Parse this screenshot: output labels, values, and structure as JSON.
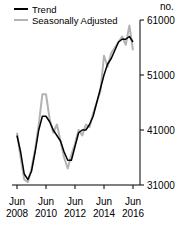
{
  "chart_data": {
    "type": "line",
    "y_label": "no.",
    "categories": [
      "Jun 2008",
      null,
      null,
      null,
      null,
      null,
      null,
      null,
      "Jun 2010",
      null,
      null,
      null,
      null,
      null,
      null,
      null,
      "Jun 2012",
      null,
      null,
      null,
      null,
      null,
      null,
      null,
      "Jun 2014",
      null,
      null,
      null,
      null,
      null,
      null,
      null,
      "Jun 2016"
    ],
    "series": [
      {
        "name": "Trend",
        "color": "#000000",
        "values": [
          40000,
          37000,
          33000,
          32000,
          33500,
          37000,
          41000,
          43500,
          43500,
          42500,
          41000,
          40000,
          39000,
          37000,
          35500,
          35500,
          38000,
          40500,
          41000,
          41000,
          42000,
          43500,
          46000,
          48500,
          51000,
          53000,
          54000,
          55500,
          57000,
          57500,
          57500,
          58000,
          57000
        ]
      },
      {
        "name": "Seasonally Adjusted",
        "color": "#b3b3b3",
        "values": [
          40500,
          36000,
          32000,
          31500,
          34000,
          37500,
          42000,
          47500,
          47500,
          43000,
          40500,
          42000,
          39000,
          36000,
          34000,
          36500,
          38500,
          41000,
          40000,
          42000,
          41500,
          44000,
          46000,
          48000,
          54500,
          52500,
          55000,
          56000,
          57000,
          58000,
          56500,
          60000,
          55500
        ]
      }
    ],
    "ylim": [
      31000,
      61000
    ],
    "yticks": [
      31000,
      41000,
      51000,
      61000
    ],
    "grid": false,
    "legend": "top-left"
  }
}
